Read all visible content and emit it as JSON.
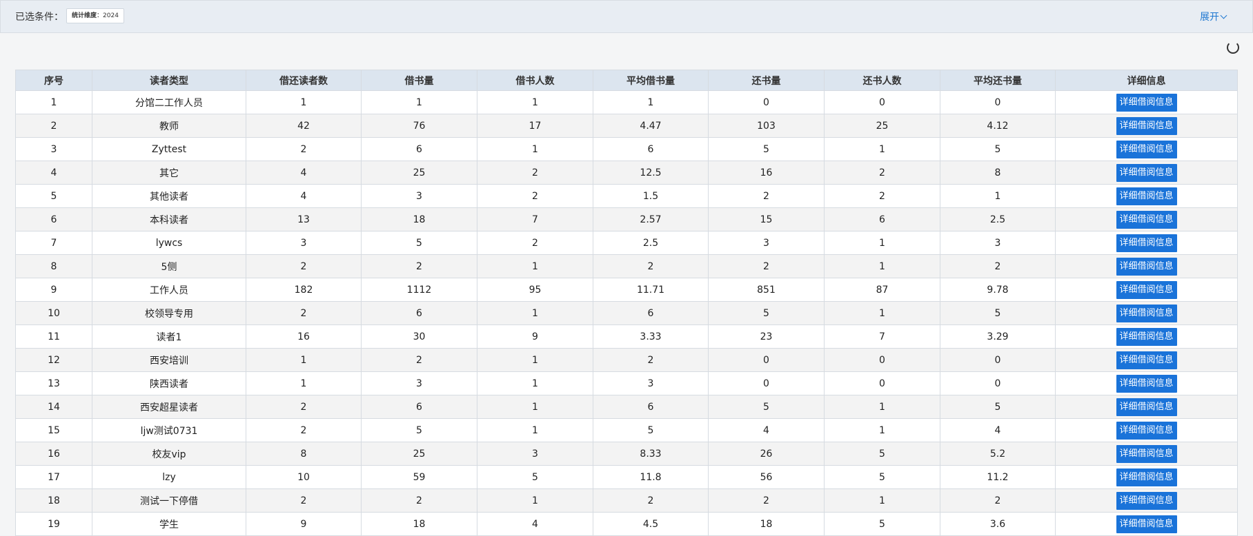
{
  "filter": {
    "label": "已选条件：",
    "tag_key": "统计维度",
    "tag_sep": "：",
    "tag_value": "2024",
    "expand_label": "展开"
  },
  "table": {
    "headers": [
      "序号",
      "读者类型",
      "借还读者数",
      "借书量",
      "借书人数",
      "平均借书量",
      "还书量",
      "还书人数",
      "平均还书量",
      "详细信息"
    ],
    "button_label": "详细借阅信息",
    "rows": [
      [
        "1",
        "分馆二工作人员",
        "1",
        "1",
        "1",
        "1",
        "0",
        "0",
        "0"
      ],
      [
        "2",
        "教师",
        "42",
        "76",
        "17",
        "4.47",
        "103",
        "25",
        "4.12"
      ],
      [
        "3",
        "Zyttest",
        "2",
        "6",
        "1",
        "6",
        "5",
        "1",
        "5"
      ],
      [
        "4",
        "其它",
        "4",
        "25",
        "2",
        "12.5",
        "16",
        "2",
        "8"
      ],
      [
        "5",
        "其他读者",
        "4",
        "3",
        "2",
        "1.5",
        "2",
        "2",
        "1"
      ],
      [
        "6",
        "本科读者",
        "13",
        "18",
        "7",
        "2.57",
        "15",
        "6",
        "2.5"
      ],
      [
        "7",
        "lywcs",
        "3",
        "5",
        "2",
        "2.5",
        "3",
        "1",
        "3"
      ],
      [
        "8",
        "5侧",
        "2",
        "2",
        "1",
        "2",
        "2",
        "1",
        "2"
      ],
      [
        "9",
        "工作人员",
        "182",
        "1112",
        "95",
        "11.71",
        "851",
        "87",
        "9.78"
      ],
      [
        "10",
        "校领导专用",
        "2",
        "6",
        "1",
        "6",
        "5",
        "1",
        "5"
      ],
      [
        "11",
        "读者1",
        "16",
        "30",
        "9",
        "3.33",
        "23",
        "7",
        "3.29"
      ],
      [
        "12",
        "西安培训",
        "1",
        "2",
        "1",
        "2",
        "0",
        "0",
        "0"
      ],
      [
        "13",
        "陕西读者",
        "1",
        "3",
        "1",
        "3",
        "0",
        "0",
        "0"
      ],
      [
        "14",
        "西安超星读者",
        "2",
        "6",
        "1",
        "6",
        "5",
        "1",
        "5"
      ],
      [
        "15",
        "ljw测试0731",
        "2",
        "5",
        "1",
        "5",
        "4",
        "1",
        "4"
      ],
      [
        "16",
        "校友vip",
        "8",
        "25",
        "3",
        "8.33",
        "26",
        "5",
        "5.2"
      ],
      [
        "17",
        "lzy",
        "10",
        "59",
        "5",
        "11.8",
        "56",
        "5",
        "11.2"
      ],
      [
        "18",
        "测试一下停借",
        "2",
        "2",
        "1",
        "2",
        "2",
        "1",
        "2"
      ],
      [
        "19",
        "学生",
        "9",
        "18",
        "4",
        "4.5",
        "18",
        "5",
        "3.6"
      ]
    ]
  }
}
